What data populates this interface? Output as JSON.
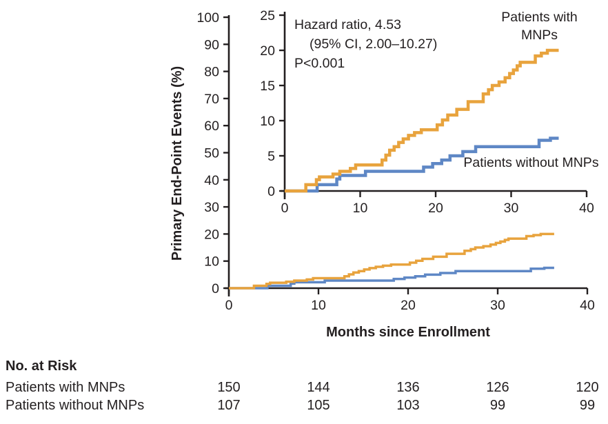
{
  "chart_data": {
    "type": "line",
    "subtype": "step-kaplan-meier-cumulative-incidence",
    "xlabel": "Months since Enrollment",
    "ylabel": "Primary End-Point Events (%)",
    "annotation": {
      "hazard_ratio": "Hazard ratio, 4.53",
      "confidence_interval": "(95% CI, 2.00–10.27)",
      "p_value": "P<0.001"
    },
    "main_axis": {
      "xlim": [
        0,
        40
      ],
      "ylim": [
        0,
        100
      ],
      "xticks": [
        0,
        10,
        20,
        30,
        40
      ],
      "yticks": [
        0,
        10,
        20,
        30,
        40,
        50,
        60,
        70,
        80,
        90,
        100
      ]
    },
    "inset_axis": {
      "xlim": [
        0,
        40
      ],
      "ylim": [
        0,
        25
      ],
      "xticks": [
        0,
        10,
        20,
        30,
        40
      ],
      "yticks": [
        0,
        5,
        10,
        15,
        20,
        25
      ]
    },
    "x_end": 36.3,
    "grid": false,
    "legend_position": "in-plot-labels",
    "axis_color": "#231F20",
    "text_color": "#231F20",
    "series": [
      {
        "name": "Patients with MNPs",
        "color": "#E8A33D",
        "steps": [
          [
            0,
            0
          ],
          [
            2.8,
            0.9
          ],
          [
            4.2,
            1.6
          ],
          [
            4.6,
            2.0
          ],
          [
            6.4,
            2.4
          ],
          [
            7.3,
            2.8
          ],
          [
            8.7,
            3.2
          ],
          [
            9.4,
            3.7
          ],
          [
            12.9,
            4.4
          ],
          [
            13.4,
            5.1
          ],
          [
            13.9,
            5.8
          ],
          [
            14.5,
            6.3
          ],
          [
            15.1,
            6.9
          ],
          [
            15.7,
            7.4
          ],
          [
            16.4,
            7.9
          ],
          [
            17.2,
            8.3
          ],
          [
            18.1,
            8.7
          ],
          [
            20.2,
            9.4
          ],
          [
            20.9,
            10.1
          ],
          [
            21.6,
            10.8
          ],
          [
            22.8,
            11.6
          ],
          [
            24.3,
            12.7
          ],
          [
            26.3,
            13.8
          ],
          [
            27.0,
            14.4
          ],
          [
            27.5,
            15.0
          ],
          [
            28.4,
            15.5
          ],
          [
            29.2,
            16.1
          ],
          [
            29.8,
            16.7
          ],
          [
            30.3,
            17.2
          ],
          [
            30.8,
            17.8
          ],
          [
            31.2,
            18.3
          ],
          [
            33.2,
            19.2
          ],
          [
            34.0,
            19.6
          ],
          [
            34.8,
            20.0
          ]
        ]
      },
      {
        "name": "Patients without MNPs",
        "color": "#5E87C5",
        "steps": [
          [
            0,
            0
          ],
          [
            4.3,
            0.9
          ],
          [
            6.9,
            1.7
          ],
          [
            7.3,
            2.2
          ],
          [
            10.7,
            2.8
          ],
          [
            18.4,
            3.4
          ],
          [
            19.6,
            3.9
          ],
          [
            20.8,
            4.4
          ],
          [
            21.9,
            5.0
          ],
          [
            23.6,
            5.6
          ],
          [
            25.3,
            6.3
          ],
          [
            33.7,
            7.2
          ],
          [
            35.2,
            7.5
          ]
        ]
      }
    ],
    "at_risk": {
      "title": "No. at Risk",
      "rows": [
        {
          "label": "Patients with MNPs",
          "values": [
            150,
            144,
            136,
            126,
            120
          ]
        },
        {
          "label": "Patients without MNPs",
          "values": [
            107,
            105,
            103,
            99,
            99
          ]
        }
      ]
    }
  }
}
